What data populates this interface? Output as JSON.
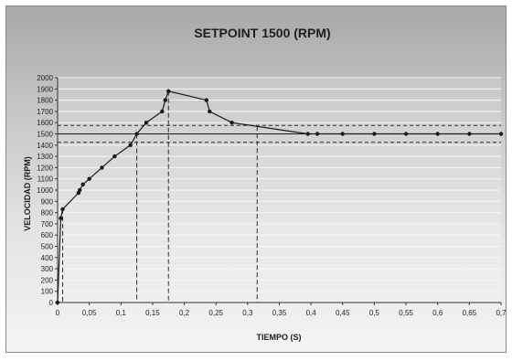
{
  "chart_data": {
    "type": "line",
    "title": "SETPOINT 1500 (RPM)",
    "xlabel": "TIEMPO (S)",
    "ylabel": "VELOCIDAD (RPM)",
    "xlim": [
      0,
      0.7
    ],
    "ylim": [
      0,
      2000
    ],
    "x_ticks": [
      0,
      0.05,
      0.1,
      0.15,
      0.2,
      0.25,
      0.3,
      0.35,
      0.4,
      0.45,
      0.5,
      0.55,
      0.6,
      0.65,
      0.7
    ],
    "x_tick_labels": [
      "0",
      "0,05",
      "0,1",
      "0,15",
      "0,2",
      "0,25",
      "0,3",
      "0,35",
      "0,4",
      "0,45",
      "0,5",
      "0,55",
      "0,6",
      "0,65",
      "0,7"
    ],
    "y_ticks": [
      0,
      100,
      200,
      300,
      400,
      500,
      600,
      700,
      800,
      900,
      1000,
      1100,
      1200,
      1300,
      1400,
      1500,
      1600,
      1700,
      1800,
      1900,
      2000
    ],
    "y_tick_labels": [
      "0",
      "100",
      "200",
      "300",
      "400",
      "500",
      "600",
      "700",
      "800",
      "900",
      "1000",
      "1100",
      "1200",
      "1300",
      "1400",
      "1500",
      "1600",
      "1700",
      "1800",
      "1900",
      "2000"
    ],
    "grid": true,
    "legend": "none",
    "line_color": "#1a1a1a",
    "setpoint": 1500,
    "tolerance_band": [
      1425,
      1575
    ],
    "vertical_markers": [
      0.008,
      0.125,
      0.175,
      0.315
    ],
    "series": [
      {
        "x": [
          0,
          0.005,
          0.008,
          0.033,
          0.035,
          0.04,
          0.05,
          0.07,
          0.09,
          0.115,
          0.125,
          0.14,
          0.165,
          0.17,
          0.175,
          0.235,
          0.24,
          0.275,
          0.395,
          0.41,
          0.45,
          0.5,
          0.55,
          0.6,
          0.65,
          0.7
        ],
        "y": [
          0,
          750,
          830,
          975,
          1000,
          1050,
          1100,
          1200,
          1300,
          1400,
          1500,
          1600,
          1700,
          1800,
          1880,
          1800,
          1700,
          1600,
          1500,
          1500,
          1500,
          1500,
          1500,
          1500,
          1500,
          1500
        ]
      }
    ]
  }
}
